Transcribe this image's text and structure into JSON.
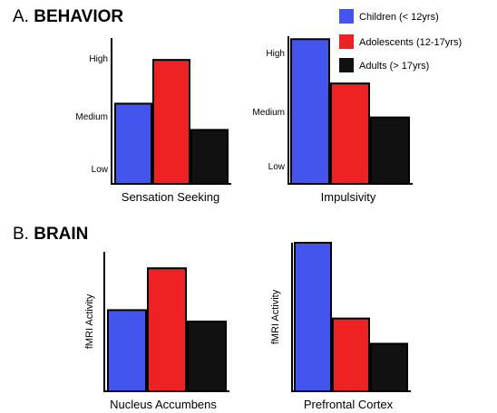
{
  "figure": {
    "section_a": {
      "prefix": "A. ",
      "bold": "BEHAVIOR"
    },
    "section_b": {
      "prefix": "B. ",
      "bold": "BRAIN"
    }
  },
  "legend": [
    {
      "label": "Children (< 12yrs)",
      "color": "#4455ee"
    },
    {
      "label": "Adolescents (12-17yrs)",
      "color": "#ee2222"
    },
    {
      "label": "Adults (> 17yrs)",
      "color": "#111111"
    }
  ],
  "chart_data": [
    {
      "type": "bar",
      "title": "Sensation Seeking",
      "ylabel": "",
      "yticks": [
        "High",
        "Medium",
        "Low"
      ],
      "categories": [
        "Children (< 12yrs)",
        "Adolescents (12-17yrs)",
        "Adults (> 17yrs)"
      ],
      "values": [
        0.55,
        0.85,
        0.37
      ],
      "colors": [
        "#4455ee",
        "#ee2222",
        "#111111"
      ],
      "ylim": [
        0,
        1
      ]
    },
    {
      "type": "bar",
      "title": "Impulsivity",
      "ylabel": "",
      "yticks": [
        "High",
        "Medium",
        "Low"
      ],
      "categories": [
        "Children (< 12yrs)",
        "Adolescents (12-17yrs)",
        "Adults (> 17yrs)"
      ],
      "values": [
        0.98,
        0.68,
        0.45
      ],
      "colors": [
        "#4455ee",
        "#ee2222",
        "#111111"
      ],
      "ylim": [
        0,
        1
      ]
    },
    {
      "type": "bar",
      "title": "Nucleus Accumbens",
      "ylabel": "fMRI Activity",
      "yticks": [],
      "categories": [
        "Children (< 12yrs)",
        "Adolescents (12-17yrs)",
        "Adults (> 17yrs)"
      ],
      "values": [
        0.64,
        0.97,
        0.55
      ],
      "colors": [
        "#4455ee",
        "#ee2222",
        "#111111"
      ],
      "ylim": [
        0,
        1.1
      ]
    },
    {
      "type": "bar",
      "title": "Prefrontal Cortex",
      "ylabel": "fMRI Activity",
      "yticks": [],
      "categories": [
        "Children (< 12yrs)",
        "Adolescents (12-17yrs)",
        "Adults (> 17yrs)"
      ],
      "values": [
        1.0,
        0.49,
        0.32
      ],
      "colors": [
        "#4455ee",
        "#ee2222",
        "#111111"
      ],
      "ylim": [
        0,
        1.0
      ]
    }
  ]
}
